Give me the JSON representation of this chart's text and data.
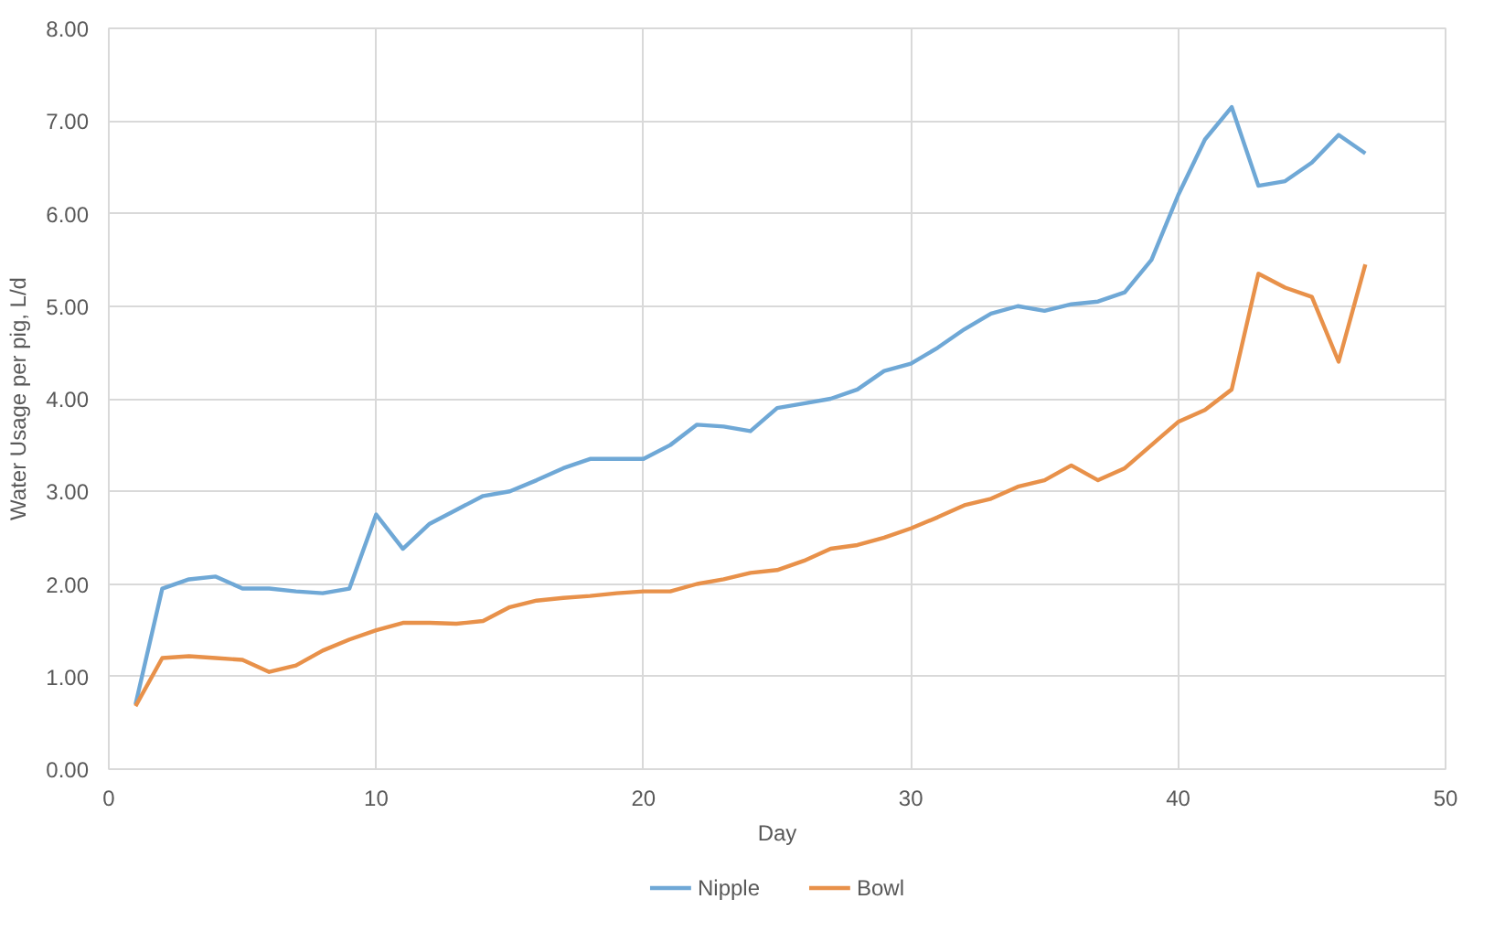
{
  "chart_data": {
    "type": "line",
    "xlabel": "Day",
    "ylabel": "Water Usage per pig, L/d",
    "x": [
      1,
      2,
      3,
      4,
      5,
      6,
      7,
      8,
      9,
      10,
      11,
      12,
      13,
      14,
      15,
      16,
      17,
      18,
      19,
      20,
      21,
      22,
      23,
      24,
      25,
      26,
      27,
      28,
      29,
      30,
      31,
      32,
      33,
      34,
      35,
      36,
      37,
      38,
      39,
      40,
      41,
      42,
      43,
      44,
      45,
      46,
      47
    ],
    "series": [
      {
        "name": "Nipple",
        "color": "#6fa8d6",
        "values": [
          0.7,
          1.95,
          2.05,
          2.08,
          1.95,
          1.95,
          1.92,
          1.9,
          1.95,
          2.75,
          2.38,
          2.65,
          2.8,
          2.95,
          3.0,
          3.12,
          3.25,
          3.35,
          3.35,
          3.35,
          3.5,
          3.72,
          3.7,
          3.65,
          3.9,
          3.95,
          4.0,
          4.1,
          4.3,
          4.38,
          4.55,
          4.75,
          4.92,
          5.0,
          4.95,
          5.02,
          5.05,
          5.15,
          5.5,
          6.2,
          6.8,
          7.15,
          6.3,
          6.35,
          6.55,
          6.85,
          6.65
        ]
      },
      {
        "name": "Bowl",
        "color": "#e8914a",
        "values": [
          0.68,
          1.2,
          1.22,
          1.2,
          1.18,
          1.05,
          1.12,
          1.28,
          1.4,
          1.5,
          1.58,
          1.58,
          1.57,
          1.6,
          1.75,
          1.82,
          1.85,
          1.87,
          1.9,
          1.92,
          1.92,
          2.0,
          2.05,
          2.12,
          2.15,
          2.25,
          2.38,
          2.42,
          2.5,
          2.6,
          2.72,
          2.85,
          2.92,
          3.05,
          3.12,
          3.28,
          3.12,
          3.25,
          3.5,
          3.75,
          3.88,
          4.1,
          5.35,
          5.2,
          5.1,
          4.4,
          5.45
        ]
      }
    ],
    "xlim": [
      0,
      50
    ],
    "xticks": [
      0,
      10,
      20,
      30,
      40,
      50
    ],
    "ylim": [
      0,
      8
    ],
    "yticks": [
      {
        "value": 0,
        "label": "0.00"
      },
      {
        "value": 1,
        "label": "1.00"
      },
      {
        "value": 2,
        "label": "2.00"
      },
      {
        "value": 3,
        "label": "3.00"
      },
      {
        "value": 4,
        "label": "4.00"
      },
      {
        "value": 5,
        "label": "5.00"
      },
      {
        "value": 6,
        "label": "6.00"
      },
      {
        "value": 7,
        "label": "7.00"
      },
      {
        "value": 8,
        "label": "8.00"
      }
    ],
    "grid": true,
    "legend": "bottom",
    "marker": "none",
    "line_style": "solid"
  }
}
